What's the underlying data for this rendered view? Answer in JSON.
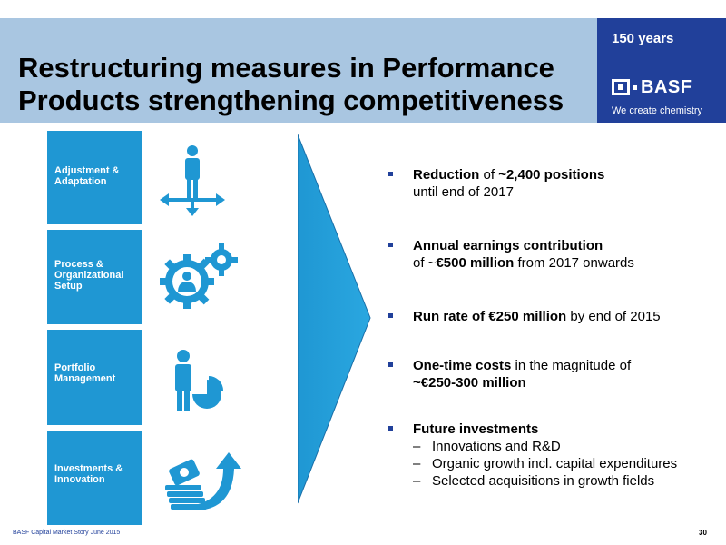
{
  "header": {
    "title_line1": "Restructuring measures in Performance",
    "title_line2": "Products strengthening competitiveness",
    "badge": "150 years",
    "logo_text": "BASF",
    "tagline": "We create chemistry"
  },
  "levers": [
    {
      "line1": "Adjustment &",
      "line2": "Adaptation",
      "line3": "",
      "icon": "person-with-arrows-icon"
    },
    {
      "line1": "Process &",
      "line2": "Organizational",
      "line3": "Setup",
      "icon": "gears-person-icon"
    },
    {
      "line1": "Portfolio",
      "line2": "Management",
      "line3": "",
      "icon": "person-pie-chart-icon"
    },
    {
      "line1": "Investments &",
      "line2": "Innovation",
      "line3": "",
      "icon": "money-growth-arrow-icon"
    }
  ],
  "bullets": {
    "b1": {
      "bold1": "Reduction",
      "text1": " of  ",
      "bold2": "~2,400 positions",
      "line2": "until end of 2017"
    },
    "b2": {
      "bold1": "Annual earnings contribution",
      "pre2": "of ~",
      "bold2": "€500 million",
      "post2": " from 2017 onwards"
    },
    "b3": {
      "bold1": "Run rate of €250 million",
      "text1": " by end of 2015"
    },
    "b4": {
      "bold1": "One-time costs",
      "text1": " in the magnitude of",
      "bold2": "~€250-300 million"
    },
    "b5": {
      "bold1": "Future investments",
      "subs": [
        "Innovations and R&D",
        "Organic growth incl. capital expenditures",
        "Selected acquisitions in growth fields"
      ],
      "dash": "–"
    }
  },
  "footer": {
    "left": "BASF Capital Market Story June 2015",
    "page": "30"
  },
  "colors": {
    "header_tint": "#a9c6e1",
    "brand_blue": "#21409a",
    "lever_blue": "#1f97d3"
  }
}
